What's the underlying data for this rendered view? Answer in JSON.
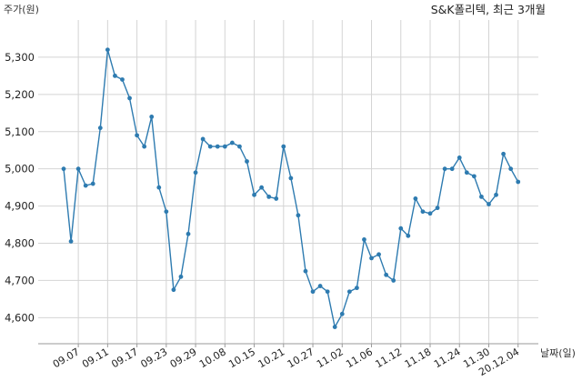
{
  "chart_data": {
    "type": "line",
    "title": "S&K폴리텍, 최근 3개월",
    "ylabel": "주가(원)",
    "xlabel": "날짜(일)",
    "ylim": [
      4530,
      5400
    ],
    "yticks": [
      4600,
      4700,
      4800,
      4900,
      5000,
      5100,
      5200,
      5300
    ],
    "ytick_labels": [
      "4,600",
      "4,700",
      "4,800",
      "4,900",
      "5,000",
      "5,100",
      "5,200",
      "5,300"
    ],
    "xtick_labels": [
      "09.07",
      "09.11",
      "09.17",
      "09.23",
      "09.29",
      "10.08",
      "10.15",
      "10.21",
      "10.27",
      "11.02",
      "11.06",
      "11.12",
      "11.18",
      "11.24",
      "11.30",
      "20.12.04"
    ],
    "xtick_indices": [
      2,
      6,
      10,
      14,
      18,
      22,
      26,
      30,
      34,
      38,
      42,
      46,
      50,
      54,
      58,
      62
    ],
    "grid": true,
    "color": "#2e7bb0",
    "series": [
      {
        "values": [
          5000,
          4805,
          5000,
          4955,
          4960,
          5110,
          5320,
          5250,
          5240,
          5190,
          5090,
          5060,
          5140,
          4950,
          4885,
          4675,
          4710,
          4825,
          4990,
          5080,
          5060,
          5060,
          5060,
          5070,
          5060,
          5020,
          4930,
          4950,
          4925,
          4920,
          5060,
          4975,
          4875,
          4725,
          4670,
          4685,
          4670,
          4575,
          4610,
          4670,
          4680,
          4810,
          4760,
          4770,
          4715,
          4700,
          4840,
          4820,
          4920,
          4885,
          4880,
          4895,
          5000,
          5000,
          5030,
          4990,
          4980,
          4925,
          4905,
          4930,
          5040,
          5000,
          4965
        ]
      }
    ]
  }
}
